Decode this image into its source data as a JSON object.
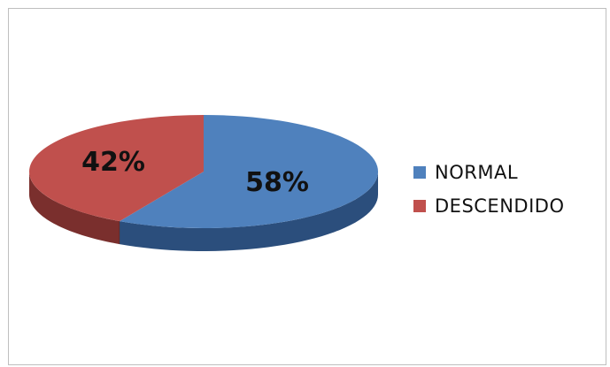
{
  "chart_data": {
    "type": "pie",
    "title": "",
    "categories": [
      "NORMAL",
      "DESCENDIDO"
    ],
    "values": [
      58,
      42
    ],
    "unit": "%",
    "data_labels": [
      "58%",
      "42%"
    ],
    "colors": [
      "#4f81bd",
      "#c0504d"
    ],
    "side_colors": [
      "#2b4e7c",
      "#7a2f2d"
    ],
    "style": "3d-pie",
    "legend": {
      "placement": "right"
    }
  }
}
